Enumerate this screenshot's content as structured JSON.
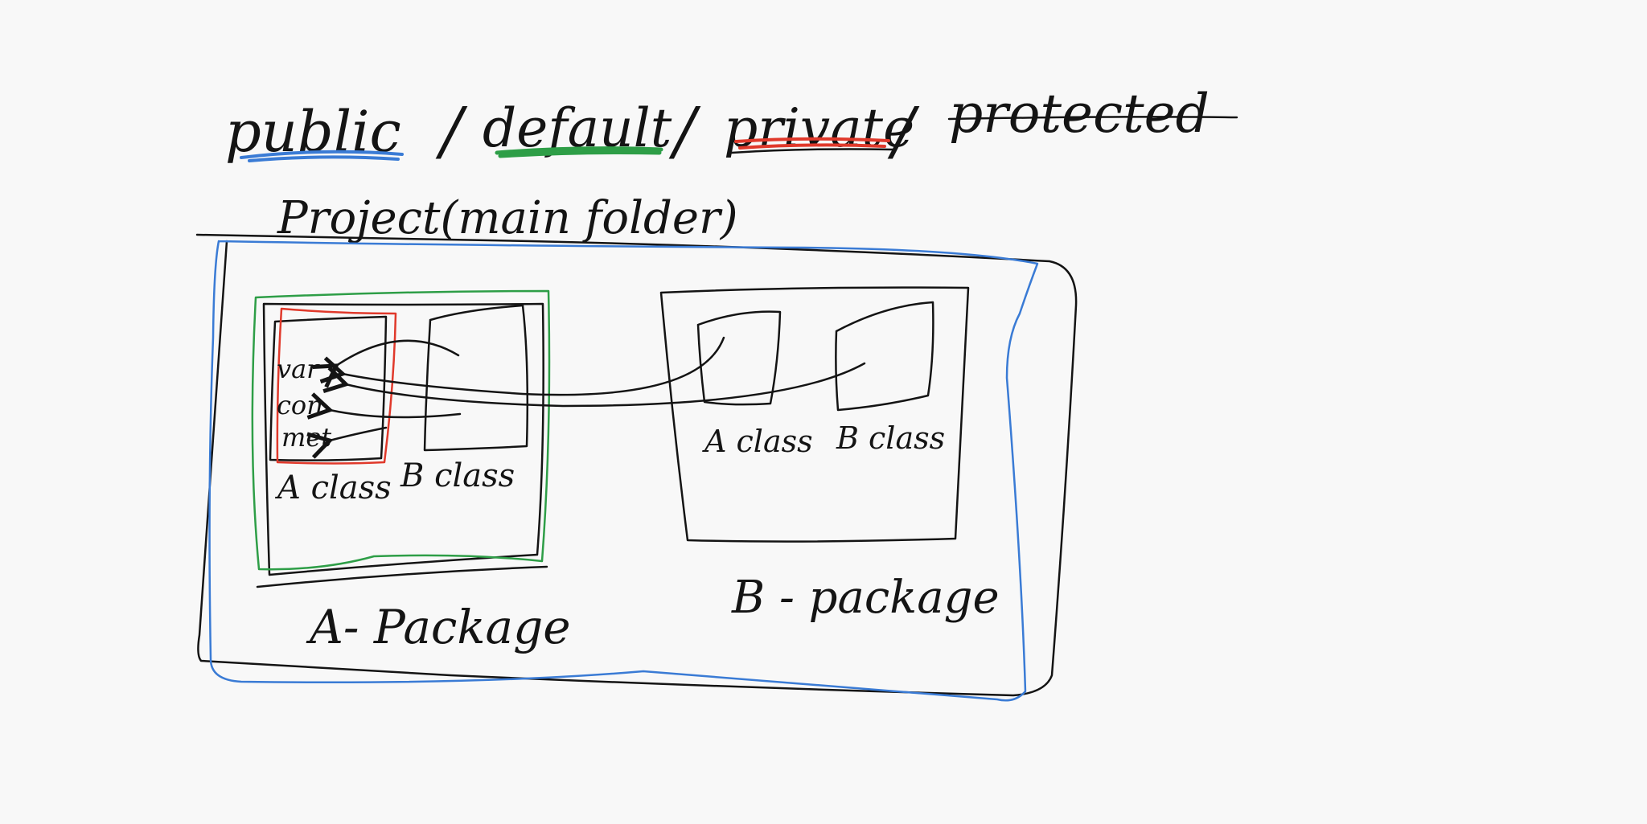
{
  "colors": {
    "background": "#f8f8f8",
    "ink": "#141414",
    "blue": "#3a7bd5",
    "green": "#2e9e47",
    "red": "#e0392b"
  },
  "header": {
    "public": "public",
    "sep1": "/",
    "default": "default",
    "sep2": "/",
    "private": "private",
    "sep3": "/",
    "protected": "protected"
  },
  "project_label": "Project(main folder)",
  "package_a": {
    "label": "A- Package",
    "class_a": {
      "label": "A class",
      "members": [
        "var",
        "con",
        "met"
      ]
    },
    "class_b": {
      "label": "B class"
    }
  },
  "package_b": {
    "label": "B - package",
    "class_a": {
      "label": "A class"
    },
    "class_b": {
      "label": "B class"
    }
  }
}
